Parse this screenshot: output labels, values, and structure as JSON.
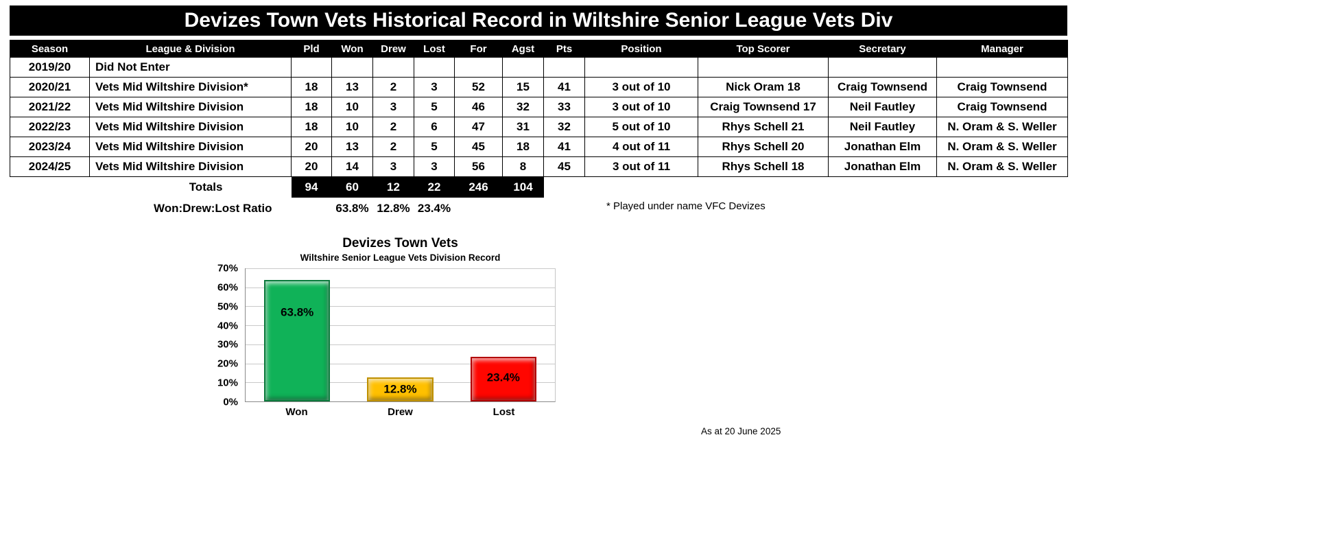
{
  "title": "Devizes Town Vets Historical Record in Wiltshire Senior League Vets Div",
  "table": {
    "headers": [
      "Season",
      "League & Division",
      "Pld",
      "Won",
      "Drew",
      "Lost",
      "For",
      "Agst",
      "Pts",
      "Position",
      "Top Scorer",
      "Secretary",
      "Manager"
    ],
    "rows": [
      [
        "2019/20",
        "Did Not Enter",
        "",
        "",
        "",
        "",
        "",
        "",
        "",
        "",
        "",
        "",
        ""
      ],
      [
        "2020/21",
        "Vets Mid Wiltshire Division*",
        "18",
        "13",
        "2",
        "3",
        "52",
        "15",
        "41",
        "3 out of 10",
        "Nick Oram 18",
        "Craig Townsend",
        "Craig Townsend"
      ],
      [
        "2021/22",
        "Vets Mid Wiltshire Division",
        "18",
        "10",
        "3",
        "5",
        "46",
        "32",
        "33",
        "3 out of 10",
        "Craig Townsend 17",
        "Neil Fautley",
        "Craig Townsend"
      ],
      [
        "2022/23",
        "Vets Mid Wiltshire Division",
        "18",
        "10",
        "2",
        "6",
        "47",
        "31",
        "32",
        "5 out of 10",
        "Rhys Schell 21",
        "Neil Fautley",
        "N. Oram & S. Weller"
      ],
      [
        "2023/24",
        "Vets Mid Wiltshire Division",
        "20",
        "13",
        "2",
        "5",
        "45",
        "18",
        "41",
        "4 out of 11",
        "Rhys Schell 20",
        "Jonathan Elm",
        "N. Oram & S. Weller"
      ],
      [
        "2024/25",
        "Vets Mid Wiltshire Division",
        "20",
        "14",
        "3",
        "3",
        "56",
        "8",
        "45",
        "3 out of 11",
        "Rhys Schell 18",
        "Jonathan Elm",
        "N. Oram & S. Weller"
      ]
    ],
    "totals": {
      "label": "Totals",
      "values": [
        "94",
        "60",
        "12",
        "22",
        "246",
        "104"
      ]
    },
    "ratio": {
      "label": "Won:Drew:Lost Ratio",
      "values": [
        "63.8%",
        "12.8%",
        "23.4%"
      ]
    },
    "note": "* Played under name VFC Devizes"
  },
  "chart_data": {
    "type": "bar",
    "title": "Devizes Town Vets",
    "subtitle": "Wiltshire Senior League Vets Division Record",
    "categories": [
      "Won",
      "Drew",
      "Lost"
    ],
    "values": [
      63.8,
      12.8,
      23.4
    ],
    "labels": [
      "63.8%",
      "12.8%",
      "23.4%"
    ],
    "bar_colors": [
      "#10b258",
      "#ffc000",
      "#ff0600"
    ],
    "bar_borders": [
      "#0b7a3c",
      "#bf9000",
      "#b20000"
    ],
    "ylim": [
      0,
      70
    ],
    "ytick_step": 10,
    "yticks": [
      "0%",
      "10%",
      "20%",
      "30%",
      "40%",
      "50%",
      "60%",
      "70%"
    ],
    "grid": true,
    "legend": "none"
  },
  "footer": "As at 20 June 2025"
}
